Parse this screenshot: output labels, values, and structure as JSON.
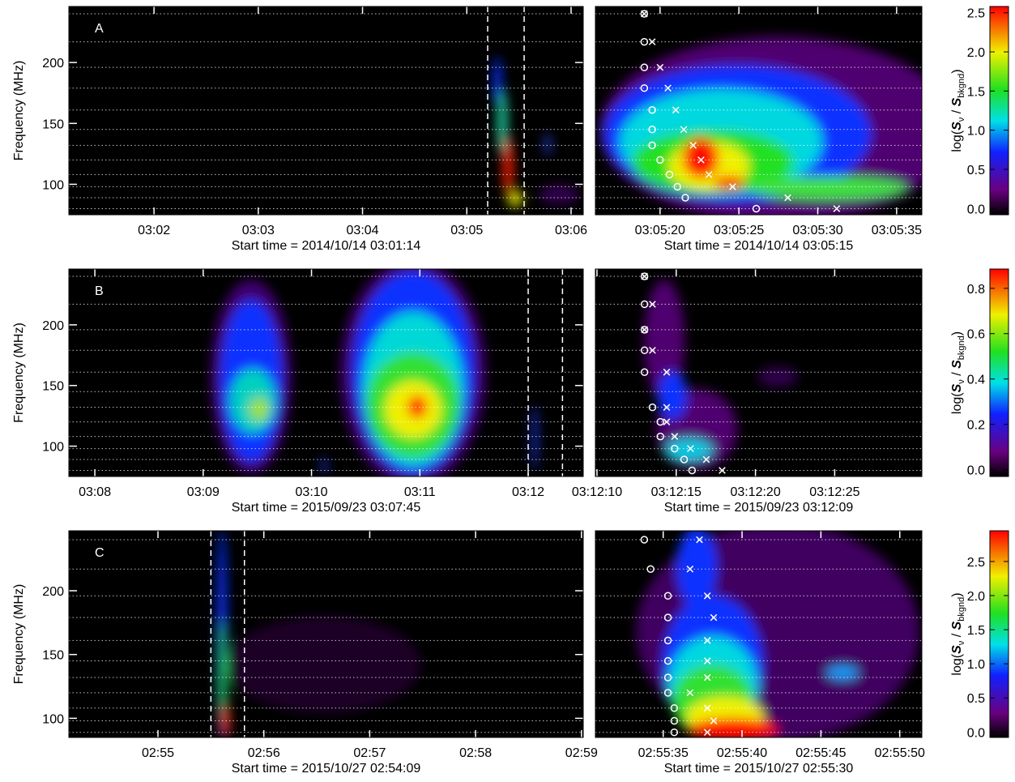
{
  "chart_data": [
    {
      "type": "heatmap",
      "panel_label": "A",
      "ylabel": "Frequency (MHz)",
      "xlabel": "Start time = 2014/10/14 03:01:14",
      "xlim": [
        -3,
        293
      ],
      "xticks": [
        {
          "value": 46,
          "label": "03:02"
        },
        {
          "value": 106,
          "label": "03:03"
        },
        {
          "value": 166,
          "label": "03:04"
        },
        {
          "value": 226,
          "label": "03:05"
        },
        {
          "value": 286,
          "label": "03:06"
        }
      ],
      "ylim": [
        75,
        246
      ],
      "yticks": [
        100,
        150,
        200
      ],
      "channels": [
        80,
        89,
        98,
        108,
        120,
        132,
        145,
        161,
        179,
        196,
        217,
        240
      ],
      "interval": [
        238,
        259
      ]
    },
    {
      "type": "scatter",
      "xlabel": "Start time = 2014/10/14 03:05:15",
      "xlim": [
        0.9,
        21.6
      ],
      "xticks": [
        {
          "value": 5,
          "label": "03:05:20"
        },
        {
          "value": 10,
          "label": "03:05:25"
        },
        {
          "value": 15,
          "label": "03:05:30"
        },
        {
          "value": 20,
          "label": "03:05:35"
        }
      ],
      "ylim": [
        75,
        246
      ],
      "channels": [
        80,
        89,
        98,
        108,
        120,
        132,
        145,
        161,
        179,
        196,
        217,
        240
      ],
      "series": [
        {
          "marker": "circle",
          "color": "#ffffff",
          "x": [
            4.0,
            4.0,
            4.0,
            4.0,
            4.5,
            4.5,
            4.5,
            5.0,
            5.6,
            6.1,
            6.6,
            11.1
          ],
          "values": [
            240,
            217,
            196,
            179,
            161,
            145,
            132,
            120,
            108,
            98,
            89,
            80
          ]
        },
        {
          "marker": "cross",
          "color": "#ffffff",
          "x": [
            4.0,
            4.5,
            5.0,
            5.5,
            6.0,
            6.5,
            7.1,
            7.6,
            8.1,
            9.6,
            13.1,
            16.2
          ],
          "values": [
            240,
            217,
            196,
            179,
            161,
            145,
            132,
            120,
            108,
            98,
            89,
            80
          ]
        }
      ]
    },
    {
      "type": "colorbar",
      "ylim": [
        -0.08,
        2.58
      ],
      "yticks": [
        {
          "value": 0,
          "label": "0.0"
        },
        0.5,
        {
          "value": 1,
          "label": "1.0"
        },
        1.5,
        {
          "value": 2,
          "label": "2.0"
        },
        2.5
      ],
      "label": [
        {
          "text": "log(",
          "style": "normal"
        },
        {
          "text": "S",
          "style": "italic"
        },
        {
          "text": "ν",
          "style": "sub"
        },
        {
          "text": " / ",
          "style": "normal"
        },
        {
          "text": "S",
          "style": "italic"
        },
        {
          "text": "bkgnd",
          "style": "sub"
        },
        {
          "text": ")",
          "style": "normal"
        }
      ]
    },
    {
      "type": "heatmap",
      "panel_label": "B",
      "ylabel": "Frequency (MHz)",
      "xlabel": "Start time = 2015/09/23 03:07:45",
      "xlim": [
        0.6,
        285.5
      ],
      "xticks": [
        {
          "value": 15,
          "label": "03:08"
        },
        {
          "value": 75,
          "label": "03:09"
        },
        {
          "value": 135,
          "label": "03:10"
        },
        {
          "value": 195,
          "label": "03:11"
        },
        {
          "value": 255,
          "label": "03:12"
        }
      ],
      "ylim": [
        75,
        246
      ],
      "yticks": [
        100,
        150,
        200
      ],
      "channels": [
        80,
        89,
        98,
        108,
        120,
        132,
        145,
        161,
        179,
        196,
        217,
        240
      ],
      "interval": [
        255,
        274
      ]
    },
    {
      "type": "scatter",
      "xlabel": "Start time = 2015/09/23 03:12:09",
      "xlim": [
        0.9,
        21.5
      ],
      "xticks": [
        {
          "value": 1,
          "label": "03:12:10"
        },
        {
          "value": 6,
          "label": "03:12:15"
        },
        {
          "value": 11,
          "label": "03:12:20"
        },
        {
          "value": 16,
          "label": "03:12:25"
        }
      ],
      "ylim": [
        75,
        246
      ],
      "channels": [
        80,
        89,
        98,
        108,
        120,
        132,
        145,
        161,
        179,
        196,
        217,
        240
      ],
      "series": [
        {
          "marker": "circle",
          "color": "#ffffff",
          "x": [
            4.0,
            4.0,
            4.0,
            4.0,
            4.0,
            4.5,
            5.0,
            5.0,
            5.9,
            6.5,
            7.0
          ],
          "values": [
            240,
            217,
            196,
            179,
            161,
            132,
            120,
            108,
            98,
            89,
            80
          ]
        },
        {
          "marker": "cross",
          "color": "#ffffff",
          "x": [
            4.0,
            4.5,
            4.0,
            4.5,
            5.4,
            5.4,
            5.4,
            5.9,
            6.9,
            7.9,
            8.9
          ],
          "values": [
            240,
            217,
            196,
            179,
            161,
            132,
            120,
            108,
            98,
            89,
            80
          ]
        }
      ]
    },
    {
      "type": "colorbar",
      "ylim": [
        -0.03,
        0.885
      ],
      "yticks": [
        {
          "value": 0,
          "label": "0.0"
        },
        0.2,
        0.4,
        0.6,
        0.8
      ],
      "label": [
        {
          "text": "log(",
          "style": "normal"
        },
        {
          "text": "S",
          "style": "italic"
        },
        {
          "text": "ν",
          "style": "sub"
        },
        {
          "text": " / ",
          "style": "normal"
        },
        {
          "text": "S",
          "style": "italic"
        },
        {
          "text": "bkgnd",
          "style": "sub"
        },
        {
          "text": ")",
          "style": "normal"
        }
      ]
    },
    {
      "type": "heatmap",
      "panel_label": "C",
      "ylabel": "Frequency (MHz)",
      "xlabel": "Start time = 2015/10/27 02:54:09",
      "xlim": [
        0.5,
        292
      ],
      "xticks": [
        {
          "value": 51,
          "label": "02:55"
        },
        {
          "value": 111,
          "label": "02:56"
        },
        {
          "value": 171,
          "label": "02:57"
        },
        {
          "value": 231,
          "label": "02:58"
        },
        {
          "value": 291,
          "label": "02:59"
        }
      ],
      "ylim": [
        85,
        247
      ],
      "yticks": [
        100,
        150,
        200
      ],
      "channels": [
        89,
        98,
        108,
        120,
        132,
        145,
        161,
        179,
        196,
        217,
        240
      ],
      "interval": [
        81,
        100
      ]
    },
    {
      "type": "scatter",
      "xlabel": "Start time = 2015/10/27 02:55:30",
      "xlim": [
        0.7,
        21.4
      ],
      "xticks": [
        {
          "value": 5,
          "label": "02:55:35"
        },
        {
          "value": 10,
          "label": "02:55:40"
        },
        {
          "value": 15,
          "label": "02:55:45"
        },
        {
          "value": 20,
          "label": "02:55:50"
        }
      ],
      "ylim": [
        85,
        247
      ],
      "channels": [
        89,
        98,
        108,
        120,
        132,
        145,
        161,
        179,
        196,
        217,
        240
      ],
      "series": [
        {
          "marker": "circle",
          "color": "#ffffff",
          "x": [
            3.8,
            4.2,
            5.3,
            5.3,
            5.3,
            5.3,
            5.3,
            5.3,
            5.7,
            5.7,
            5.7
          ],
          "values": [
            240,
            217,
            196,
            179,
            161,
            145,
            132,
            120,
            108,
            98,
            89
          ]
        },
        {
          "marker": "cross",
          "color": "#ffffff",
          "x": [
            7.3,
            6.7,
            7.8,
            8.2,
            7.8,
            7.8,
            7.8,
            6.7,
            7.8,
            8.2,
            7.8
          ],
          "values": [
            240,
            217,
            196,
            179,
            161,
            145,
            132,
            120,
            108,
            98,
            89
          ]
        }
      ]
    },
    {
      "type": "colorbar",
      "ylim": [
        -0.08,
        2.95
      ],
      "yticks": [
        {
          "value": 0,
          "label": "0.0"
        },
        0.5,
        {
          "value": 1,
          "label": "1.0"
        },
        1.5,
        {
          "value": 2,
          "label": "2.0"
        },
        2.5
      ],
      "label": [
        {
          "text": "log(",
          "style": "normal"
        },
        {
          "text": "S",
          "style": "italic"
        },
        {
          "text": "ν",
          "style": "sub"
        },
        {
          "text": " / ",
          "style": "normal"
        },
        {
          "text": "S",
          "style": "italic"
        },
        {
          "text": "bkgnd",
          "style": "sub"
        },
        {
          "text": ")",
          "style": "normal"
        }
      ]
    }
  ]
}
